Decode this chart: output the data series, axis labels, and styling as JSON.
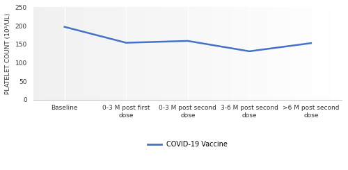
{
  "x_labels": [
    "Baseline",
    "0-3 M post first\ndose",
    "0-3 M post second\ndose",
    "3-6 M post second\ndose",
    ">6 M post second\ndose"
  ],
  "y_values": [
    197,
    154,
    159,
    131,
    153
  ],
  "line_color": "#4472C4",
  "line_width": 1.8,
  "legend_label": "COVID-19 Vaccine",
  "ylabel": "PLATELET COUNT (10³/UL)",
  "ylim": [
    0,
    250
  ],
  "yticks": [
    0,
    50,
    100,
    150,
    200,
    250
  ],
  "bg_left": "#e8e8e8",
  "bg_right": "#ffffff",
  "grid_color": "#ffffff",
  "axis_fontsize": 6.5,
  "tick_fontsize": 6.5,
  "legend_fontsize": 7
}
